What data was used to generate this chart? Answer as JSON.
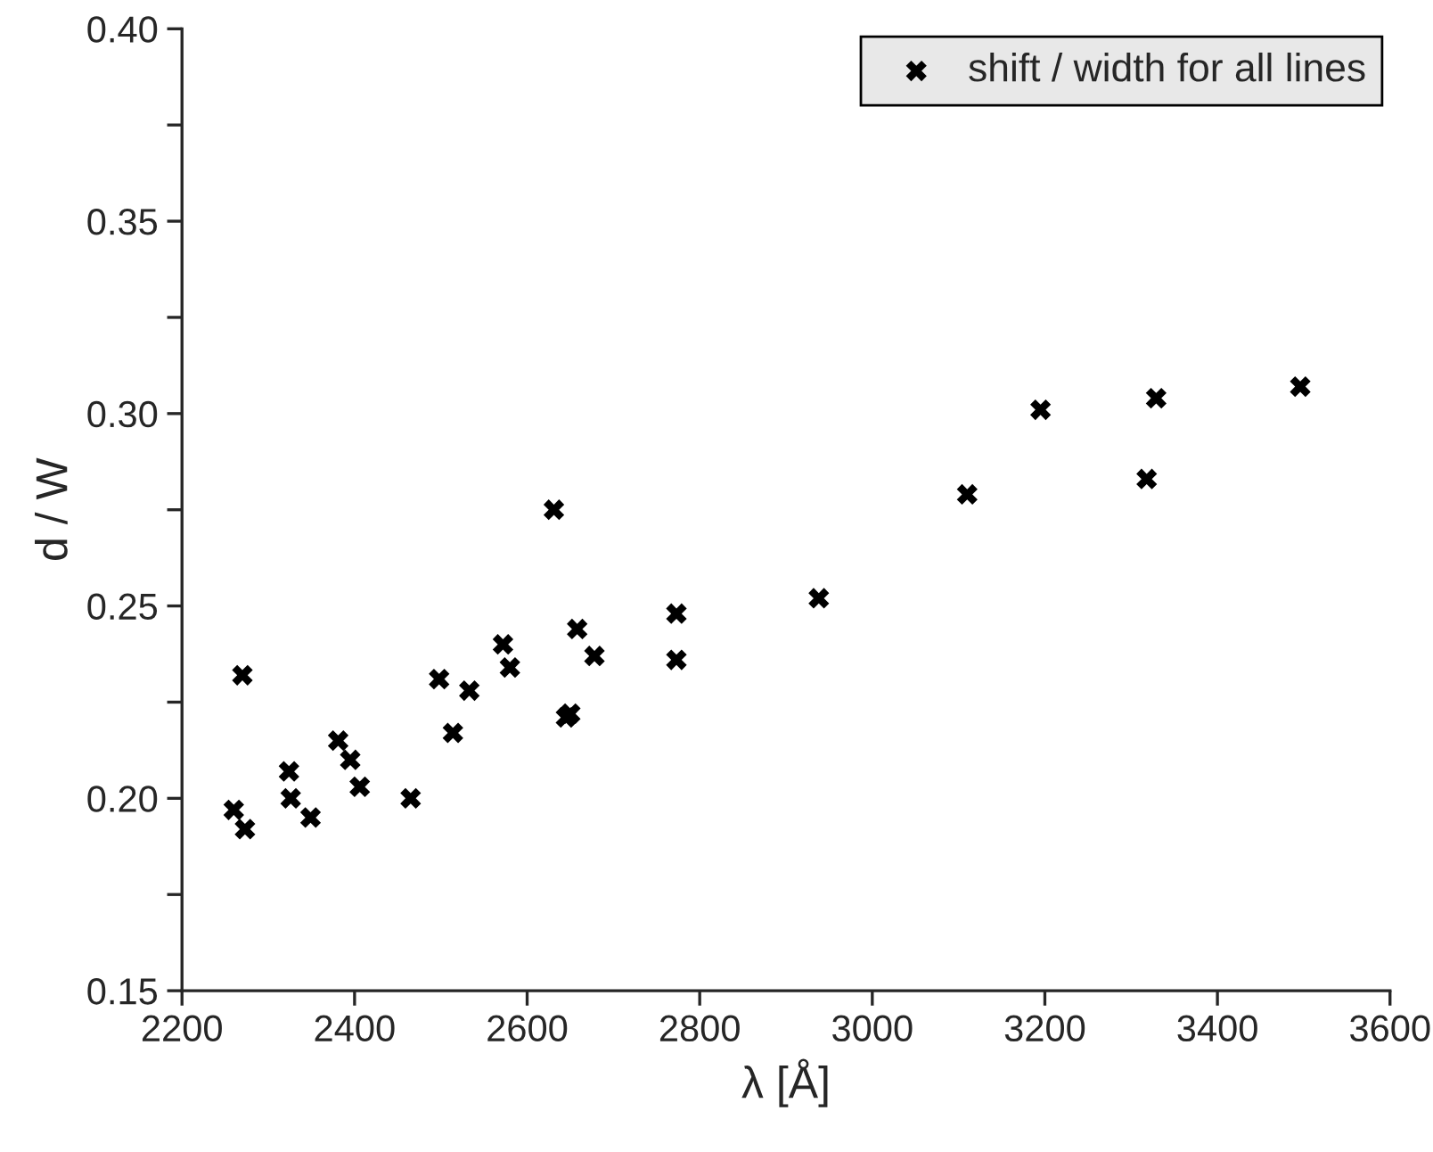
{
  "chart_data": {
    "type": "scatter",
    "xlabel": "λ [Å]",
    "ylabel": "d / W",
    "x": [
      2260,
      2273,
      2270,
      2324,
      2326,
      2349,
      2381,
      2395,
      2406,
      2465,
      2498,
      2514,
      2533,
      2572,
      2580,
      2631,
      2645,
      2650,
      2658,
      2678,
      2773,
      2773,
      2938,
      3110,
      3195,
      3318,
      3329,
      3496
    ],
    "series": [
      {
        "name": "shift / width for all lines",
        "color": "#000000",
        "values": [
          0.197,
          0.192,
          0.232,
          0.207,
          0.2,
          0.195,
          0.215,
          0.21,
          0.203,
          0.2,
          0.231,
          0.217,
          0.228,
          0.24,
          0.234,
          0.275,
          0.221,
          0.222,
          0.244,
          0.237,
          0.248,
          0.236,
          0.252,
          0.279,
          0.301,
          0.283,
          0.304,
          0.307
        ]
      }
    ],
    "marker": "cross",
    "legend": "top right",
    "grid": false,
    "xlim": [
      2200,
      3600
    ],
    "xticks": [
      2200,
      2400,
      2600,
      2800,
      3000,
      3200,
      3400,
      3600
    ],
    "ylim": [
      0.15,
      0.4
    ],
    "yticks": [
      0.15,
      {
        "value": 0.175,
        "label": null
      },
      {
        "value": 0.2,
        "label": "0.20"
      },
      {
        "value": 0.225,
        "label": null
      },
      0.25,
      {
        "value": 0.275,
        "label": null
      },
      {
        "value": 0.3,
        "label": "0.30"
      },
      {
        "value": 0.325,
        "label": null
      },
      0.35,
      {
        "value": 0.375,
        "label": null
      },
      {
        "value": 0.4,
        "label": "0.40"
      }
    ]
  }
}
